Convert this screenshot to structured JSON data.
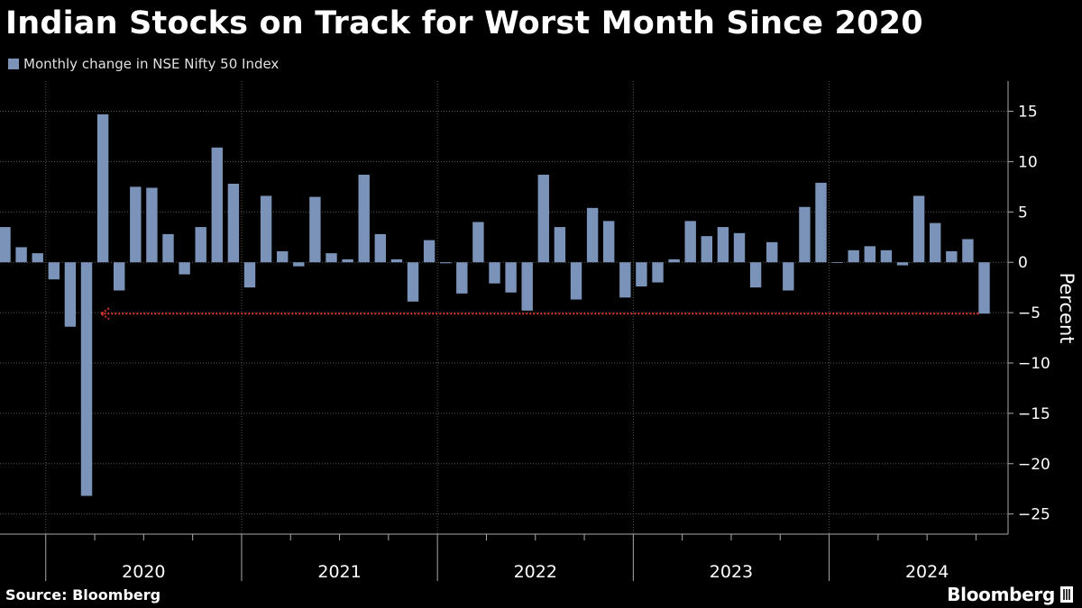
{
  "title": "Indian Stocks on Track for Worst Month Since 2020",
  "legend": {
    "label": "Monthly change in NSE Nifty 50 Index",
    "color": "#7b93b8"
  },
  "source": "Source: Bloomberg",
  "brand": "Bloomberg",
  "colors": {
    "background": "#000000",
    "bar": "#7b93b8",
    "grid": "#555555",
    "axis": "#aaaaaa",
    "annotation": "#e8322d"
  },
  "chart_data": {
    "type": "bar",
    "title": "Indian Stocks on Track for Worst Month Since 2020",
    "ylabel": "Percent",
    "ylim": [
      -27,
      18
    ],
    "yticks": [
      15,
      10,
      5,
      0,
      -5,
      -10,
      -15,
      -20,
      -25
    ],
    "grid": true,
    "legend_position": "top-left",
    "year_labels": [
      "2020",
      "2021",
      "2022",
      "2023",
      "2024"
    ],
    "series": [
      {
        "name": "Monthly change in NSE Nifty 50 Index",
        "categories": [
          "2019-10",
          "2019-11",
          "2019-12",
          "2020-01",
          "2020-02",
          "2020-03",
          "2020-04",
          "2020-05",
          "2020-06",
          "2020-07",
          "2020-08",
          "2020-09",
          "2020-10",
          "2020-11",
          "2020-12",
          "2021-01",
          "2021-02",
          "2021-03",
          "2021-04",
          "2021-05",
          "2021-06",
          "2021-07",
          "2021-08",
          "2021-09",
          "2021-10",
          "2021-11",
          "2021-12",
          "2022-01",
          "2022-02",
          "2022-03",
          "2022-04",
          "2022-05",
          "2022-06",
          "2022-07",
          "2022-08",
          "2022-09",
          "2022-10",
          "2022-11",
          "2022-12",
          "2023-01",
          "2023-02",
          "2023-03",
          "2023-04",
          "2023-05",
          "2023-06",
          "2023-07",
          "2023-08",
          "2023-09",
          "2023-10",
          "2023-11",
          "2023-12",
          "2024-01",
          "2024-02",
          "2024-03",
          "2024-04",
          "2024-05",
          "2024-06",
          "2024-07",
          "2024-08",
          "2024-09",
          "2024-10"
        ],
        "values": [
          3.5,
          1.5,
          0.9,
          -1.7,
          -6.4,
          -23.2,
          14.7,
          -2.8,
          7.5,
          7.4,
          2.8,
          -1.2,
          3.5,
          11.4,
          7.8,
          -2.5,
          6.6,
          1.1,
          -0.4,
          6.5,
          0.9,
          0.3,
          8.7,
          2.8,
          0.3,
          -3.9,
          2.2,
          -0.1,
          -3.1,
          4.0,
          -2.1,
          -3.0,
          -4.8,
          8.7,
          3.5,
          -3.7,
          5.4,
          4.1,
          -3.5,
          -2.4,
          -2.0,
          0.3,
          4.1,
          2.6,
          3.5,
          2.9,
          -2.5,
          2.0,
          -2.8,
          5.5,
          7.9,
          -0.03,
          1.2,
          1.6,
          1.2,
          -0.3,
          6.6,
          3.9,
          1.1,
          2.3,
          -5.1
        ]
      }
    ],
    "annotation": {
      "type": "dotted-arrow",
      "from_category": "2024-10",
      "to_category": "2020-03",
      "y": -5.1
    }
  }
}
